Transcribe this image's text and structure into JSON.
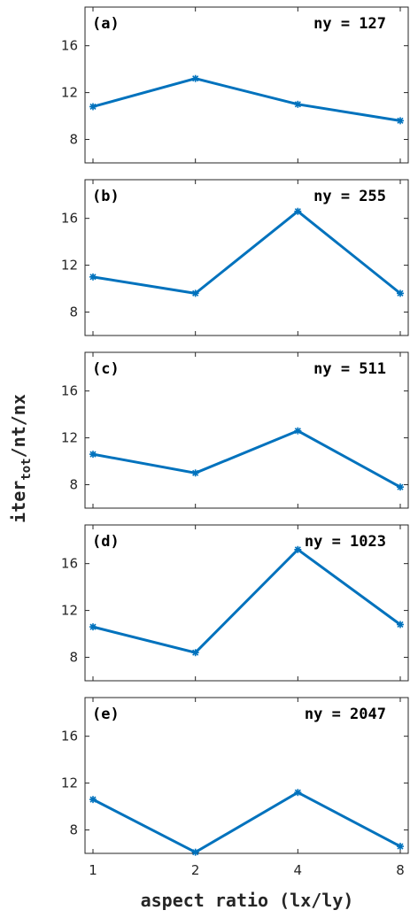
{
  "chart_data": {
    "type": "line",
    "xlabel": "aspect ratio (lx/ly)",
    "ylabel": {
      "base": "iter",
      "sub": "tot",
      "rest": "/nt/nx"
    },
    "x_ticks": [
      "1",
      "2",
      "4",
      "8"
    ],
    "y_ticks": [
      "8",
      "12",
      "16"
    ],
    "ylim": [
      6,
      19.3
    ],
    "color": "#0072BD",
    "grid": false,
    "panels": [
      {
        "label": "(a)",
        "annotation": "ny = 127",
        "x": [
          1,
          2,
          4,
          8
        ],
        "y": [
          10.8,
          13.2,
          11.0,
          9.6
        ]
      },
      {
        "label": "(b)",
        "annotation": "ny = 255",
        "x": [
          1,
          2,
          4,
          8
        ],
        "y": [
          11.0,
          9.6,
          16.6,
          9.6
        ]
      },
      {
        "label": "(c)",
        "annotation": "ny = 511",
        "x": [
          1,
          2,
          4,
          8
        ],
        "y": [
          10.6,
          9.0,
          12.6,
          7.8
        ]
      },
      {
        "label": "(d)",
        "annotation": "ny = 1023",
        "x": [
          1,
          2,
          4,
          8
        ],
        "y": [
          10.6,
          8.4,
          17.2,
          10.8
        ]
      },
      {
        "label": "(e)",
        "annotation": "ny = 2047",
        "x": [
          1,
          2,
          4,
          8
        ],
        "y": [
          10.6,
          6.1,
          11.2,
          6.6
        ]
      }
    ]
  }
}
